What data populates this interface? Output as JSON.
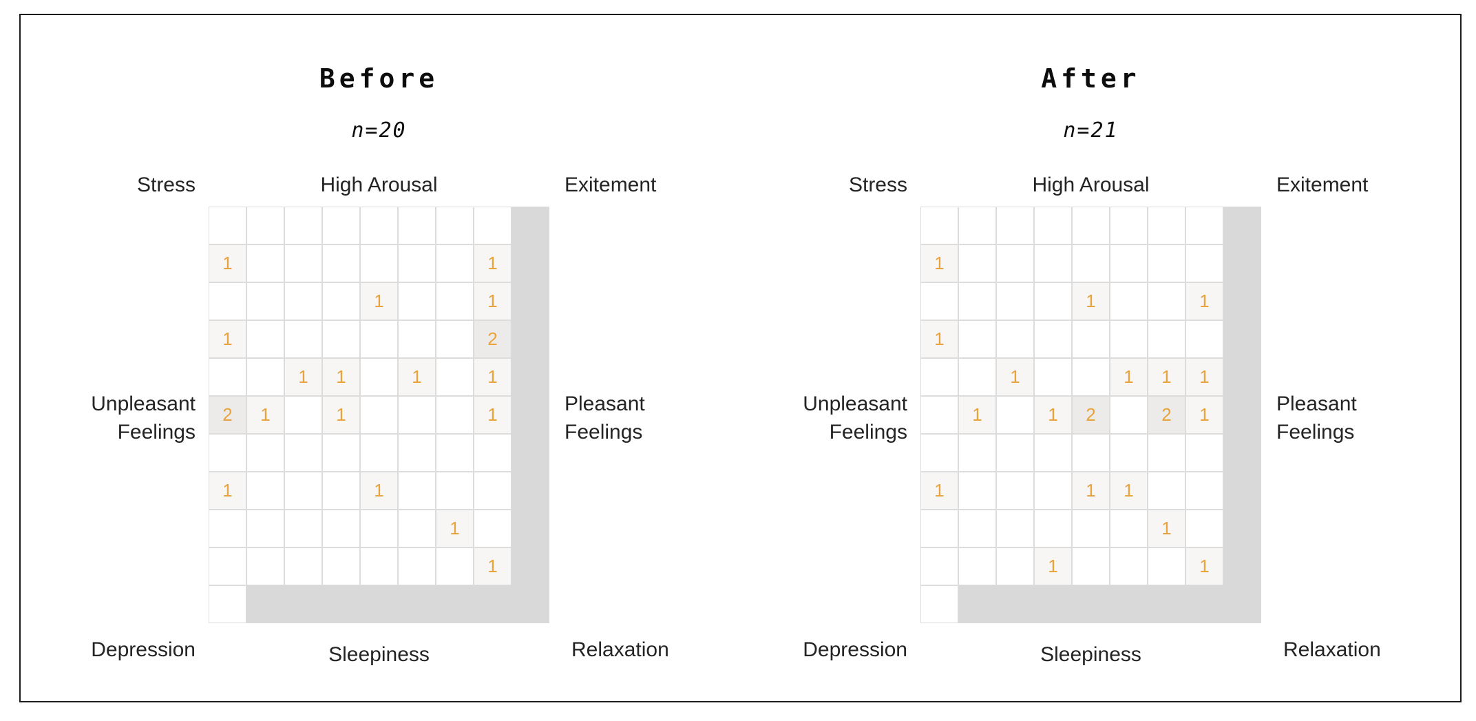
{
  "figure": {
    "colors": {
      "count_text": "#e8a33c",
      "mask_gray": "#d9d9d9",
      "grid_line": "#dcdcdc",
      "count1_bg": "#f7f6f5",
      "count2_bg": "#edebe9",
      "border": "#1b1b1b"
    }
  },
  "panels": [
    {
      "id": "before",
      "title": "Before",
      "subtitle": "n=20",
      "labels": {
        "top_left": "Stress",
        "top_center": "High Arousal",
        "top_right": "Exitement",
        "left_line1": "Unpleasant",
        "left_line2": "Feelings",
        "right_line1": "Pleasant",
        "right_line2": "Feelings",
        "bottom_left": "Depression",
        "bottom_center": "Sleepiness",
        "bottom_right": "Relaxation"
      }
    },
    {
      "id": "after",
      "title": "After",
      "subtitle": "n=21",
      "labels": {
        "top_left": "Stress",
        "top_center": "High Arousal",
        "top_right": "Exitement",
        "left_line1": "Unpleasant",
        "left_line2": "Feelings",
        "right_line1": "Pleasant",
        "right_line2": "Feelings",
        "bottom_left": "Depression",
        "bottom_center": "Sleepiness",
        "bottom_right": "Relaxation"
      }
    }
  ],
  "chart_data": [
    {
      "type": "heatmap",
      "title": "Before",
      "subtitle": "n=20",
      "n": 20,
      "grid_size": {
        "cols": 8,
        "rows": 10
      },
      "axis_labels": {
        "top": "High Arousal",
        "bottom": "Sleepiness",
        "left": "Unpleasant Feelings",
        "right": "Pleasant Feelings",
        "corner_top_left": "Stress",
        "corner_top_right": "Exitement",
        "corner_bottom_left": "Depression",
        "corner_bottom_right": "Relaxation"
      },
      "counts": [
        [
          0,
          0,
          0,
          0,
          0,
          0,
          0,
          0
        ],
        [
          1,
          0,
          0,
          0,
          0,
          0,
          0,
          1
        ],
        [
          0,
          0,
          0,
          0,
          1,
          0,
          0,
          1
        ],
        [
          1,
          0,
          0,
          0,
          0,
          0,
          0,
          2
        ],
        [
          0,
          0,
          1,
          1,
          0,
          1,
          0,
          1
        ],
        [
          2,
          1,
          0,
          1,
          0,
          0,
          0,
          1
        ],
        [
          0,
          0,
          0,
          0,
          0,
          0,
          0,
          0
        ],
        [
          1,
          0,
          0,
          0,
          1,
          0,
          0,
          0
        ],
        [
          0,
          0,
          0,
          0,
          0,
          0,
          1,
          0
        ],
        [
          0,
          0,
          0,
          0,
          0,
          0,
          0,
          1
        ]
      ]
    },
    {
      "type": "heatmap",
      "title": "After",
      "subtitle": "n=21",
      "n": 21,
      "grid_size": {
        "cols": 8,
        "rows": 10
      },
      "axis_labels": {
        "top": "High Arousal",
        "bottom": "Sleepiness",
        "left": "Unpleasant Feelings",
        "right": "Pleasant Feelings",
        "corner_top_left": "Stress",
        "corner_top_right": "Exitement",
        "corner_bottom_left": "Depression",
        "corner_bottom_right": "Relaxation"
      },
      "counts": [
        [
          0,
          0,
          0,
          0,
          0,
          0,
          0,
          0
        ],
        [
          1,
          0,
          0,
          0,
          0,
          0,
          0,
          0
        ],
        [
          0,
          0,
          0,
          0,
          1,
          0,
          0,
          1
        ],
        [
          1,
          0,
          0,
          0,
          0,
          0,
          0,
          0
        ],
        [
          0,
          0,
          1,
          0,
          0,
          1,
          1,
          1
        ],
        [
          0,
          1,
          0,
          1,
          2,
          0,
          2,
          1
        ],
        [
          0,
          0,
          0,
          0,
          0,
          0,
          0,
          0
        ],
        [
          1,
          0,
          0,
          0,
          1,
          1,
          0,
          0
        ],
        [
          0,
          0,
          0,
          0,
          0,
          0,
          1,
          0
        ],
        [
          0,
          0,
          0,
          1,
          0,
          0,
          0,
          1
        ]
      ]
    }
  ]
}
